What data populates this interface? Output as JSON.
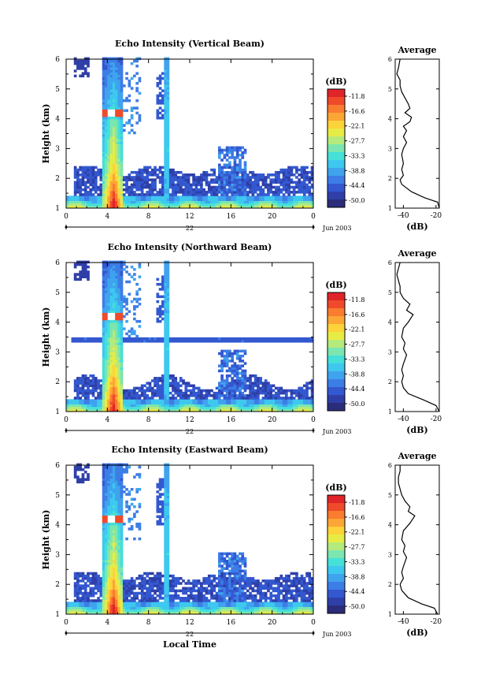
{
  "chart_data": {
    "type": "heatmap",
    "panels": [
      {
        "title": "Echo Intensity (Vertical Beam)",
        "ylabel": "Height (km)",
        "yticks": [
          "1",
          "2",
          "3",
          "4",
          "5",
          "6"
        ],
        "ylim": [
          1,
          6
        ],
        "xticks": [
          "0",
          "4",
          "8",
          "12",
          "16",
          "20",
          "0"
        ],
        "xlim": [
          0,
          24
        ],
        "day_label": "22",
        "date_label": "Jun 2003",
        "xlabel": "",
        "colorbar": {
          "unit": "(dB)",
          "labels": [
            "-11.8",
            "-16.6",
            "-22.1",
            "-27.7",
            "-33.3",
            "-38.8",
            "-44.4",
            "-50.0"
          ]
        },
        "avg": {
          "title": "Average",
          "xlabel": "(dB)",
          "xticks": [
            "-40",
            "-20"
          ],
          "xlim": [
            -45,
            -18
          ],
          "profile": [
            [
              -18,
              1.0
            ],
            [
              -19,
              1.2
            ],
            [
              -27,
              1.35
            ],
            [
              -35,
              1.55
            ],
            [
              -41,
              1.8
            ],
            [
              -42,
              1.95
            ],
            [
              -40,
              2.1
            ],
            [
              -41,
              2.3
            ],
            [
              -40,
              2.5
            ],
            [
              -41,
              2.8
            ],
            [
              -40,
              3.0
            ],
            [
              -38,
              3.2
            ],
            [
              -40,
              3.4
            ],
            [
              -38,
              3.6
            ],
            [
              -40,
              3.75
            ],
            [
              -36,
              3.9
            ],
            [
              -35,
              4.05
            ],
            [
              -39,
              4.2
            ],
            [
              -36,
              4.35
            ],
            [
              -37,
              4.5
            ],
            [
              -39,
              4.7
            ],
            [
              -41,
              4.9
            ],
            [
              -42,
              5.1
            ],
            [
              -42,
              5.3
            ],
            [
              -44,
              5.5
            ],
            [
              -43,
              5.7
            ],
            [
              -42,
              6.0
            ]
          ]
        },
        "feature": "vertical"
      },
      {
        "title": "Echo Intensity (Northward Beam)",
        "ylabel": "Height (km)",
        "yticks": [
          "1",
          "2",
          "3",
          "4",
          "5",
          "6"
        ],
        "ylim": [
          1,
          6
        ],
        "xticks": [
          "0",
          "4",
          "8",
          "12",
          "16",
          "20",
          "0"
        ],
        "xlim": [
          0,
          24
        ],
        "day_label": "22",
        "date_label": "Jun 2003",
        "xlabel": "",
        "colorbar": {
          "unit": "(dB)",
          "labels": [
            "-11.8",
            "-16.6",
            "-22.1",
            "-27.7",
            "-33.3",
            "-38.8",
            "-44.4",
            "-50.0"
          ]
        },
        "avg": {
          "title": "Average",
          "xlabel": "(dB)",
          "xticks": [
            "-40",
            "-20"
          ],
          "xlim": [
            -45,
            -18
          ],
          "profile": [
            [
              -18,
              1.0
            ],
            [
              -20,
              1.2
            ],
            [
              -28,
              1.4
            ],
            [
              -37,
              1.6
            ],
            [
              -40,
              1.8
            ],
            [
              -41,
              2.0
            ],
            [
              -40,
              2.2
            ],
            [
              -41,
              2.4
            ],
            [
              -40,
              2.6
            ],
            [
              -38,
              2.9
            ],
            [
              -40,
              3.1
            ],
            [
              -39,
              3.3
            ],
            [
              -41,
              3.5
            ],
            [
              -40,
              3.8
            ],
            [
              -37,
              4.0
            ],
            [
              -34,
              4.25
            ],
            [
              -38,
              4.4
            ],
            [
              -36,
              4.6
            ],
            [
              -40,
              4.8
            ],
            [
              -42,
              5.0
            ],
            [
              -42,
              5.2
            ],
            [
              -43,
              5.4
            ],
            [
              -44,
              5.6
            ],
            [
              -43,
              5.8
            ],
            [
              -42,
              6.0
            ]
          ]
        },
        "feature": "northward"
      },
      {
        "title": "Echo Intensity (Eastward Beam)",
        "ylabel": "Height (km)",
        "yticks": [
          "1",
          "2",
          "3",
          "4",
          "5",
          "6"
        ],
        "ylim": [
          1,
          6
        ],
        "xticks": [
          "0",
          "4",
          "8",
          "12",
          "16",
          "20",
          "0"
        ],
        "xlim": [
          0,
          24
        ],
        "day_label": "22",
        "date_label": "Jun 2003",
        "xlabel": "Local Time",
        "colorbar": {
          "unit": "(dB)",
          "labels": [
            "-11.8",
            "-16.6",
            "-22.1",
            "-27.7",
            "-33.3",
            "-38.8",
            "-44.4",
            "-50.0"
          ]
        },
        "avg": {
          "title": "Average",
          "xlabel": "(dB)",
          "xticks": [
            "-40",
            "-20"
          ],
          "xlim": [
            -45,
            -18
          ],
          "profile": [
            [
              -19,
              1.0
            ],
            [
              -21,
              1.2
            ],
            [
              -29,
              1.35
            ],
            [
              -37,
              1.55
            ],
            [
              -41,
              1.8
            ],
            [
              -42,
              2.0
            ],
            [
              -40,
              2.2
            ],
            [
              -41,
              2.4
            ],
            [
              -40,
              2.6
            ],
            [
              -38,
              2.9
            ],
            [
              -40,
              3.1
            ],
            [
              -39,
              3.3
            ],
            [
              -41,
              3.5
            ],
            [
              -40,
              3.8
            ],
            [
              -36,
              4.05
            ],
            [
              -33,
              4.3
            ],
            [
              -37,
              4.45
            ],
            [
              -36,
              4.6
            ],
            [
              -39,
              4.8
            ],
            [
              -41,
              5.0
            ],
            [
              -42,
              5.2
            ],
            [
              -43,
              5.4
            ],
            [
              -43,
              5.6
            ],
            [
              -42,
              5.8
            ],
            [
              -42,
              6.0
            ]
          ]
        },
        "feature": "eastward"
      }
    ],
    "palette": [
      "#2b2c7a",
      "#2f3fa8",
      "#3358d0",
      "#3d7de6",
      "#3fa3ee",
      "#3ec8ef",
      "#45e0d8",
      "#7be6b0",
      "#b5ea7c",
      "#e7ec45",
      "#fdd33a",
      "#fca636",
      "#f97c2f",
      "#ef4a2a",
      "#e0242a"
    ]
  }
}
